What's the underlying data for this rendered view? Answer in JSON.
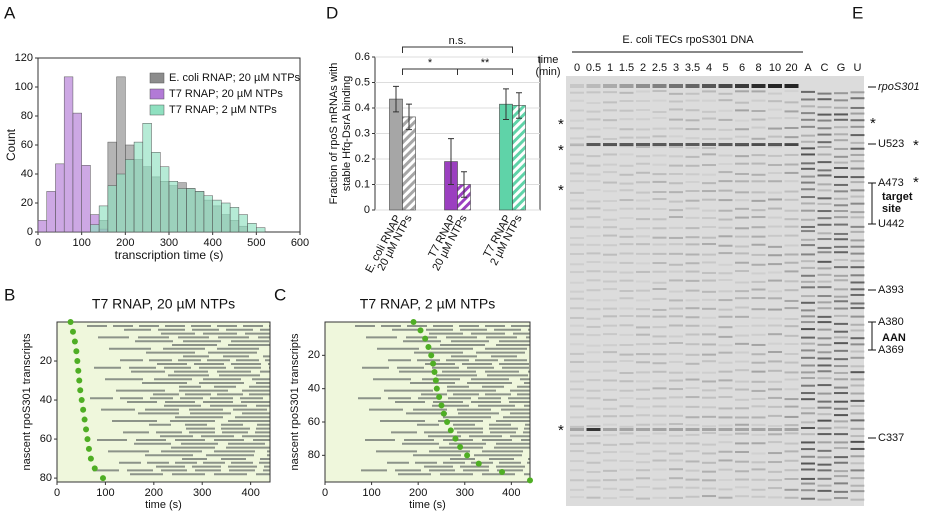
{
  "chart_data": [
    {
      "panel": "A",
      "type": "histogram",
      "xlabel": "transcription time (s)",
      "ylabel": "Count",
      "bins": [
        0,
        20,
        40,
        60,
        80,
        100,
        120,
        140,
        160,
        180,
        200,
        220,
        240,
        260,
        280,
        300,
        320,
        340,
        360,
        380,
        400,
        420,
        440,
        460,
        480,
        500,
        520,
        540,
        560,
        580,
        600
      ],
      "xlim": [
        0,
        600
      ],
      "ylim": [
        0,
        120
      ],
      "xticks": [
        0,
        100,
        200,
        300,
        400,
        500,
        600
      ],
      "yticks": [
        0,
        20,
        40,
        60,
        80,
        100,
        120
      ],
      "legend": "upper right",
      "series": [
        {
          "name": "E. coli RNAP; 20 µM NTPs",
          "color": "#8c8c8c",
          "values": [
            0,
            0,
            0,
            0,
            0,
            0,
            0,
            8,
            62,
            107,
            60,
            50,
            45,
            38,
            35,
            32,
            34,
            30,
            28,
            22,
            18,
            12,
            8,
            4,
            0,
            0,
            0,
            0,
            0,
            0
          ]
        },
        {
          "name": "T7 RNAP; 20 µM NTPs",
          "color": "#b27ad6",
          "values": [
            8,
            28,
            47,
            107,
            82,
            46,
            12,
            2,
            0,
            0,
            0,
            0,
            0,
            0,
            0,
            0,
            0,
            0,
            0,
            0,
            0,
            0,
            0,
            0,
            0,
            0,
            0,
            0,
            0,
            0
          ]
        },
        {
          "name": "T7 RNAP; 2 µM NTPs",
          "color": "#8fe0c0",
          "values": [
            0,
            0,
            0,
            0,
            0,
            0,
            5,
            18,
            32,
            40,
            50,
            62,
            75,
            55,
            45,
            35,
            30,
            30,
            28,
            25,
            22,
            20,
            17,
            12,
            6,
            3,
            0,
            0,
            0,
            0
          ]
        }
      ]
    },
    {
      "panel": "D",
      "type": "bar",
      "ylabel": [
        "Fraction of rpoS mRNAs with",
        "stable Hfq-DsrA binding"
      ],
      "categories": [
        [
          "E. coli RNAP",
          "20 µM NTPs"
        ],
        [
          "T7 RNAP",
          "20 µM NTPs"
        ],
        [
          "T7 RNAP",
          "2 µM NTPs"
        ]
      ],
      "colors": [
        "#a6a6a6",
        "#9b3fc0",
        "#5fd3a8"
      ],
      "ylim": [
        0,
        0.6
      ],
      "yticks": [
        0,
        0.1,
        0.2,
        0.3,
        0.4,
        0.5,
        0.6
      ],
      "grid": true,
      "series": [
        {
          "pattern": "solid",
          "values": [
            0.435,
            0.19,
            0.415
          ],
          "errors": [
            0.05,
            0.09,
            0.06
          ]
        },
        {
          "pattern": "hatched",
          "values": [
            0.365,
            0.1,
            0.41
          ],
          "errors": [
            0.05,
            0.05,
            0.05
          ]
        }
      ],
      "annotations": [
        "n.s.",
        "*",
        "**"
      ]
    },
    {
      "panel": "B",
      "type": "scatter",
      "title": "T7 RNAP, 20 µM NTPs",
      "xlabel": "time (s)",
      "ylabel": "nascent rpoS301 transcripts",
      "xlim": [
        0,
        440
      ],
      "ylim": [
        0,
        82
      ],
      "y_inverted": true,
      "xticks": [
        0,
        100,
        200,
        300,
        400
      ],
      "yticks": [
        20,
        40,
        60,
        80
      ],
      "color": "#4fae24",
      "x": [
        28,
        33,
        37,
        40,
        42,
        44,
        46,
        48,
        51,
        54,
        57,
        60,
        63,
        66,
        70,
        78,
        95
      ],
      "y": [
        0,
        5,
        10,
        15,
        20,
        25,
        30,
        35,
        40,
        45,
        50,
        55,
        60,
        65,
        70,
        75,
        80
      ]
    },
    {
      "panel": "C",
      "type": "scatter",
      "title": "T7 RNAP, 2 µM NTPs",
      "xlabel": "time (s)",
      "ylabel": "nascent rpoS301 transcripts",
      "xlim": [
        0,
        440
      ],
      "ylim": [
        0,
        96
      ],
      "y_inverted": true,
      "xticks": [
        0,
        100,
        200,
        300,
        400
      ],
      "yticks": [
        20,
        40,
        60,
        80
      ],
      "color": "#4fae24",
      "x": [
        190,
        205,
        215,
        222,
        228,
        232,
        235,
        238,
        240,
        245,
        250,
        255,
        262,
        270,
        280,
        290,
        305,
        330,
        380,
        440
      ],
      "y": [
        0,
        5,
        10,
        15,
        20,
        25,
        30,
        35,
        40,
        45,
        50,
        55,
        60,
        65,
        70,
        75,
        80,
        85,
        90,
        95
      ]
    }
  ],
  "gel": {
    "panel": "E",
    "header": "E. coli TECs rpoS301 DNA",
    "axis_label": [
      "time",
      "(min)"
    ],
    "lanes": [
      "0",
      "0.5",
      "1",
      "1.5",
      "2",
      "2.5",
      "3",
      "3.5",
      "4",
      "5",
      "6",
      "8",
      "10",
      "20",
      "A",
      "C",
      "G",
      "U"
    ],
    "band_labels": [
      "rpoS301",
      "U523",
      [
        "target",
        "site"
      ],
      "A473",
      "U442",
      "A393",
      "A380",
      "AAN",
      "A369",
      "C337"
    ],
    "left_asterisks": [
      "*",
      "*",
      "*",
      "*"
    ],
    "right_asterisks": [
      "*",
      "*",
      "*"
    ]
  }
}
